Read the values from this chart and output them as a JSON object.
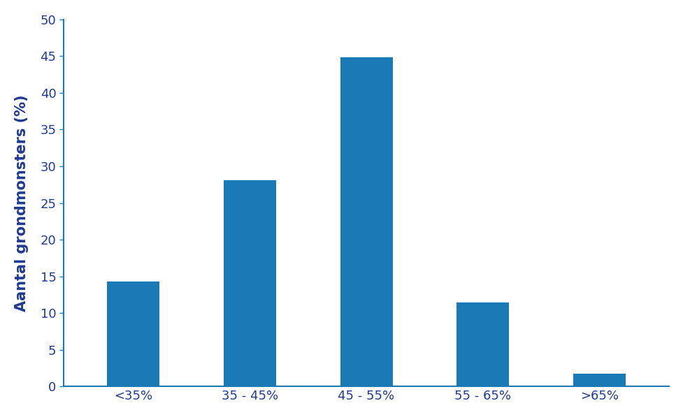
{
  "categories": [
    "<35%",
    "35 - 45%",
    "45 - 55%",
    "55 - 65%",
    ">65%"
  ],
  "values": [
    14.3,
    28.1,
    44.8,
    11.4,
    1.7
  ],
  "bar_color": "#1a7ab5",
  "ylabel": "Aantal grondmonsters (%)",
  "ylim": [
    0,
    50
  ],
  "yticks": [
    0,
    5,
    10,
    15,
    20,
    25,
    30,
    35,
    40,
    45,
    50
  ],
  "ylabel_color": "#1f3a8f",
  "tick_color": "#1f3a8f",
  "spine_color": "#1a7ab5",
  "background_color": "#ffffff",
  "ylabel_fontsize": 15,
  "tick_fontsize": 13,
  "bar_width": 0.45
}
